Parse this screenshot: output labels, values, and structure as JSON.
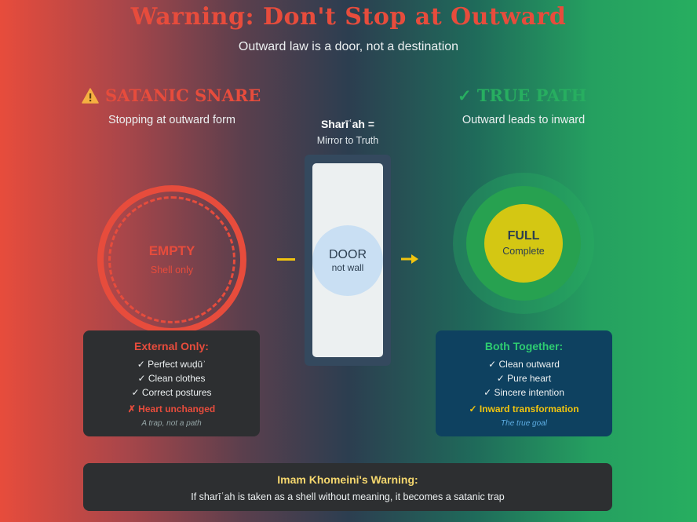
{
  "header": {
    "title": "Warning: Don't Stop at Outward",
    "subtitle": "Outward law is a door, not a destination"
  },
  "left": {
    "heading": "SATANIC SNARE",
    "heading_icon": "warning-icon",
    "subheading": "Stopping at outward form",
    "circle_label": "EMPTY",
    "circle_sub": "Shell only",
    "box": {
      "title": "External Only:",
      "items": [
        "✓ Perfect wuḍūʾ",
        "✓ Clean clothes",
        "✓ Correct postures"
      ],
      "special": "✗ Heart unchanged",
      "note": "A trap, not a path"
    }
  },
  "middle": {
    "heading": "Sharīʿah =",
    "subheading": "Mirror to Truth",
    "door_label": "DOOR",
    "door_sub": "not wall"
  },
  "right": {
    "heading": "✓ TRUE PATH",
    "subheading": "Outward leads to inward",
    "circle_label": "FULL",
    "circle_sub": "Complete",
    "box": {
      "title": "Both Together:",
      "items": [
        "✓ Clean outward",
        "✓ Pure heart",
        "✓ Sincere intention"
      ],
      "special": "✓ Inward transformation",
      "note": "The true goal"
    }
  },
  "footer": {
    "title": "Imam Khomeini's Warning:",
    "text": "If sharīʿah is taken as a shell without meaning, it becomes a satanic trap"
  },
  "colors": {
    "danger": "#e74c3c",
    "success": "#27ae60",
    "accent": "#f1c40f",
    "dark": "#2c3e50"
  }
}
